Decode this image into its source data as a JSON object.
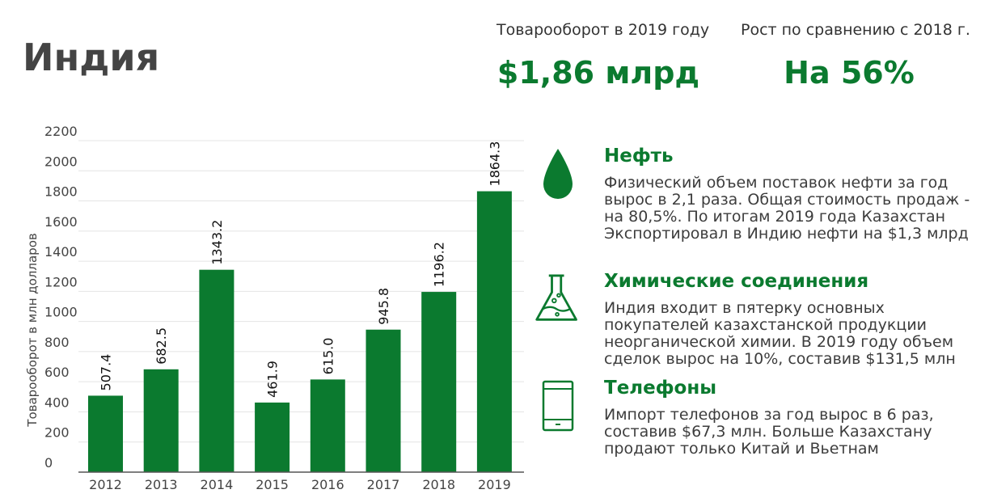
{
  "header": {
    "title": "Индия",
    "stats": [
      {
        "label": "Товарооборот в 2019 году",
        "value": "$1,86 млрд"
      },
      {
        "label": "Рост по сравнению с 2018 г.",
        "value": "На 56%"
      }
    ]
  },
  "chart_data": {
    "type": "bar",
    "categories": [
      "2012",
      "2013",
      "2014",
      "2015",
      "2016",
      "2017",
      "2018",
      "2019"
    ],
    "values": [
      507.4,
      682.5,
      1343.2,
      461.9,
      615.0,
      945.8,
      1196.2,
      1864.3
    ],
    "value_labels": [
      "507.4",
      "682.5",
      "1343.2",
      "461.9",
      "615.0",
      "945.8",
      "1196.2",
      "1864.3"
    ],
    "yticks": [
      "0",
      "200",
      "400",
      "600",
      "800",
      "1000",
      "1200",
      "1400",
      "1600",
      "1800",
      "2000",
      "2200"
    ],
    "ylim": [
      0,
      2200
    ],
    "ylabel": "Товарооборот в млн долларов",
    "xlabel": "",
    "grid": true,
    "color": "#0b7a2f"
  },
  "panels": [
    {
      "icon": "oil-drop-icon",
      "title": "Нефть",
      "text": "Физический объем поставок нефти за год вырос в 2,1 раза. Общая стоимость продаж - на 80,5%. По итогам 2019 года Казахстан Экспортировал в Индию нефти на $1,3 млрд"
    },
    {
      "icon": "flask-icon",
      "title": "Химические соединения",
      "text": "Индия входит в пятерку основных покупателей казахстанской продукции неорганической химии. В 2019 году объем сделок вырос на 10%, составив $131,5 млн"
    },
    {
      "icon": "phone-icon",
      "title": "Телефоны",
      "text": "Импорт телефонов за год вырос в 6 раз, составив $67,3 млн. Больше Казахстану продают только Китай и Вьетнам"
    }
  ]
}
